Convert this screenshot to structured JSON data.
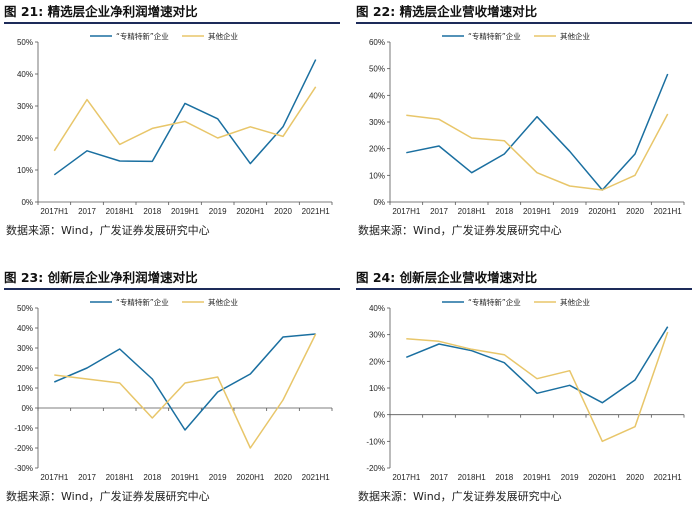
{
  "colors": {
    "series_a": "#1a6fa0",
    "series_b": "#e8c66a",
    "axis": "#555555"
  },
  "charts": [
    {
      "title_fig": "图 21:",
      "title_text": "精选层企业净利润增速对比",
      "source": "数据来源：Wind，广发证券发展研究中心",
      "chart_data": {
        "type": "line",
        "categories": [
          "2017H1",
          "2017",
          "2018H1",
          "2018",
          "2019H1",
          "2019",
          "2020H1",
          "2020",
          "2021H1"
        ],
        "ylim": [
          0,
          50
        ],
        "yticks": [
          0,
          10,
          20,
          30,
          40,
          50
        ],
        "tick_suffix": "%",
        "legend_position": "top",
        "grid": false,
        "series": [
          {
            "name": "“专精特新”企业",
            "values": [
              8.5,
              16,
              12.8,
              12.7,
              30.8,
              26,
              12,
              23.5,
              44.5
            ]
          },
          {
            "name": "其他企业",
            "values": [
              16,
              32,
              18,
              23,
              25.2,
              20,
              23.5,
              20.5,
              36
            ]
          }
        ]
      }
    },
    {
      "title_fig": "图 22:",
      "title_text": "精选层企业营收增速对比",
      "source": "数据来源：Wind，广发证券发展研究中心",
      "chart_data": {
        "type": "line",
        "categories": [
          "2017H1",
          "2017",
          "2018H1",
          "2018",
          "2019H1",
          "2019",
          "2020H1",
          "2020",
          "2021H1"
        ],
        "ylim": [
          0,
          60
        ],
        "yticks": [
          0,
          10,
          20,
          30,
          40,
          50,
          60
        ],
        "tick_suffix": "%",
        "legend_position": "top",
        "grid": false,
        "series": [
          {
            "name": "“专精特新”企业",
            "values": [
              18.5,
              21,
              11,
              18,
              32,
              19,
              4.5,
              18,
              48
            ]
          },
          {
            "name": "其他企业",
            "values": [
              32.5,
              31,
              24,
              23,
              11,
              6,
              4.5,
              10,
              33
            ]
          }
        ]
      }
    },
    {
      "title_fig": "图 23:",
      "title_text": "创新层企业净利润增速对比",
      "source": "数据来源：Wind，广发证券发展研究中心",
      "chart_data": {
        "type": "line",
        "categories": [
          "2017H1",
          "2017",
          "2018H1",
          "2018",
          "2019H1",
          "2019",
          "2020H1",
          "2020",
          "2021H1"
        ],
        "ylim": [
          -30,
          50
        ],
        "yticks": [
          -30,
          -20,
          -10,
          0,
          10,
          20,
          30,
          40,
          50
        ],
        "tick_suffix": "%",
        "legend_position": "top",
        "grid": false,
        "series": [
          {
            "name": "“专精特新”企业",
            "values": [
              13,
              20,
              29.5,
              14.5,
              -11,
              8,
              17,
              35.5,
              37
            ]
          },
          {
            "name": "其他企业",
            "values": [
              16.5,
              14.5,
              12.5,
              -5,
              12.5,
              15.5,
              -20,
              4,
              37
            ]
          }
        ]
      }
    },
    {
      "title_fig": "图 24:",
      "title_text": "创新层企业营收增速对比",
      "source": "数据来源：Wind，广发证券发展研究中心",
      "chart_data": {
        "type": "line",
        "categories": [
          "2017H1",
          "2017",
          "2018H1",
          "2018",
          "2019H1",
          "2019",
          "2020H1",
          "2020",
          "2021H1"
        ],
        "ylim": [
          -20,
          40
        ],
        "yticks": [
          -20,
          -10,
          0,
          10,
          20,
          30,
          40
        ],
        "tick_suffix": "%",
        "legend_position": "top",
        "grid": false,
        "series": [
          {
            "name": "“专精特新”企业",
            "values": [
              21.5,
              26.5,
              24,
              19.5,
              8,
              11,
              4.5,
              13,
              33
            ]
          },
          {
            "name": "其他企业",
            "values": [
              28.5,
              27.5,
              24.5,
              22.5,
              13.5,
              16.5,
              -10,
              -4.5,
              31
            ]
          }
        ]
      }
    }
  ]
}
